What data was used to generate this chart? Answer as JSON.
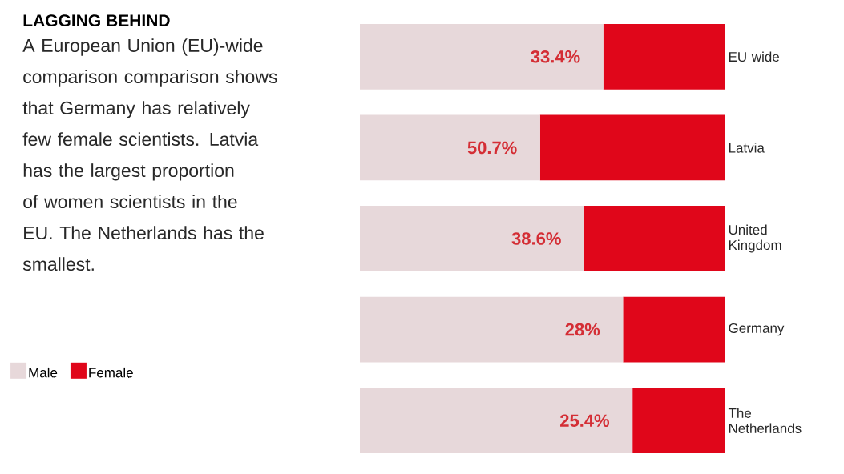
{
  "chart_data": {
    "type": "bar",
    "orientation": "horizontal",
    "stacked": true,
    "title": "LAGGING BEHIND",
    "subtitle": "A European Union (EU)-wide comparison comparison shows that Germany has relatively few female scientists. Latvia has the largest proportion of women scientists in the EU. The Netherlands has the smallest.",
    "categories": [
      "EU wide",
      "Latvia",
      "United Kingdom",
      "Germany",
      "The Netherlands"
    ],
    "series": [
      {
        "name": "Male",
        "color": "#e7d8da",
        "values": [
          66.6,
          49.3,
          61.4,
          72,
          74.6
        ]
      },
      {
        "name": "Female",
        "color": "#e0061a",
        "values": [
          33.4,
          50.7,
          38.6,
          28,
          25.4
        ],
        "value_labels": [
          "33.4%",
          "50.7%",
          "38.6%",
          "28%",
          "25.4%"
        ]
      }
    ],
    "xlim": [
      0,
      100
    ],
    "tick_labels": "y",
    "legend": "left"
  }
}
